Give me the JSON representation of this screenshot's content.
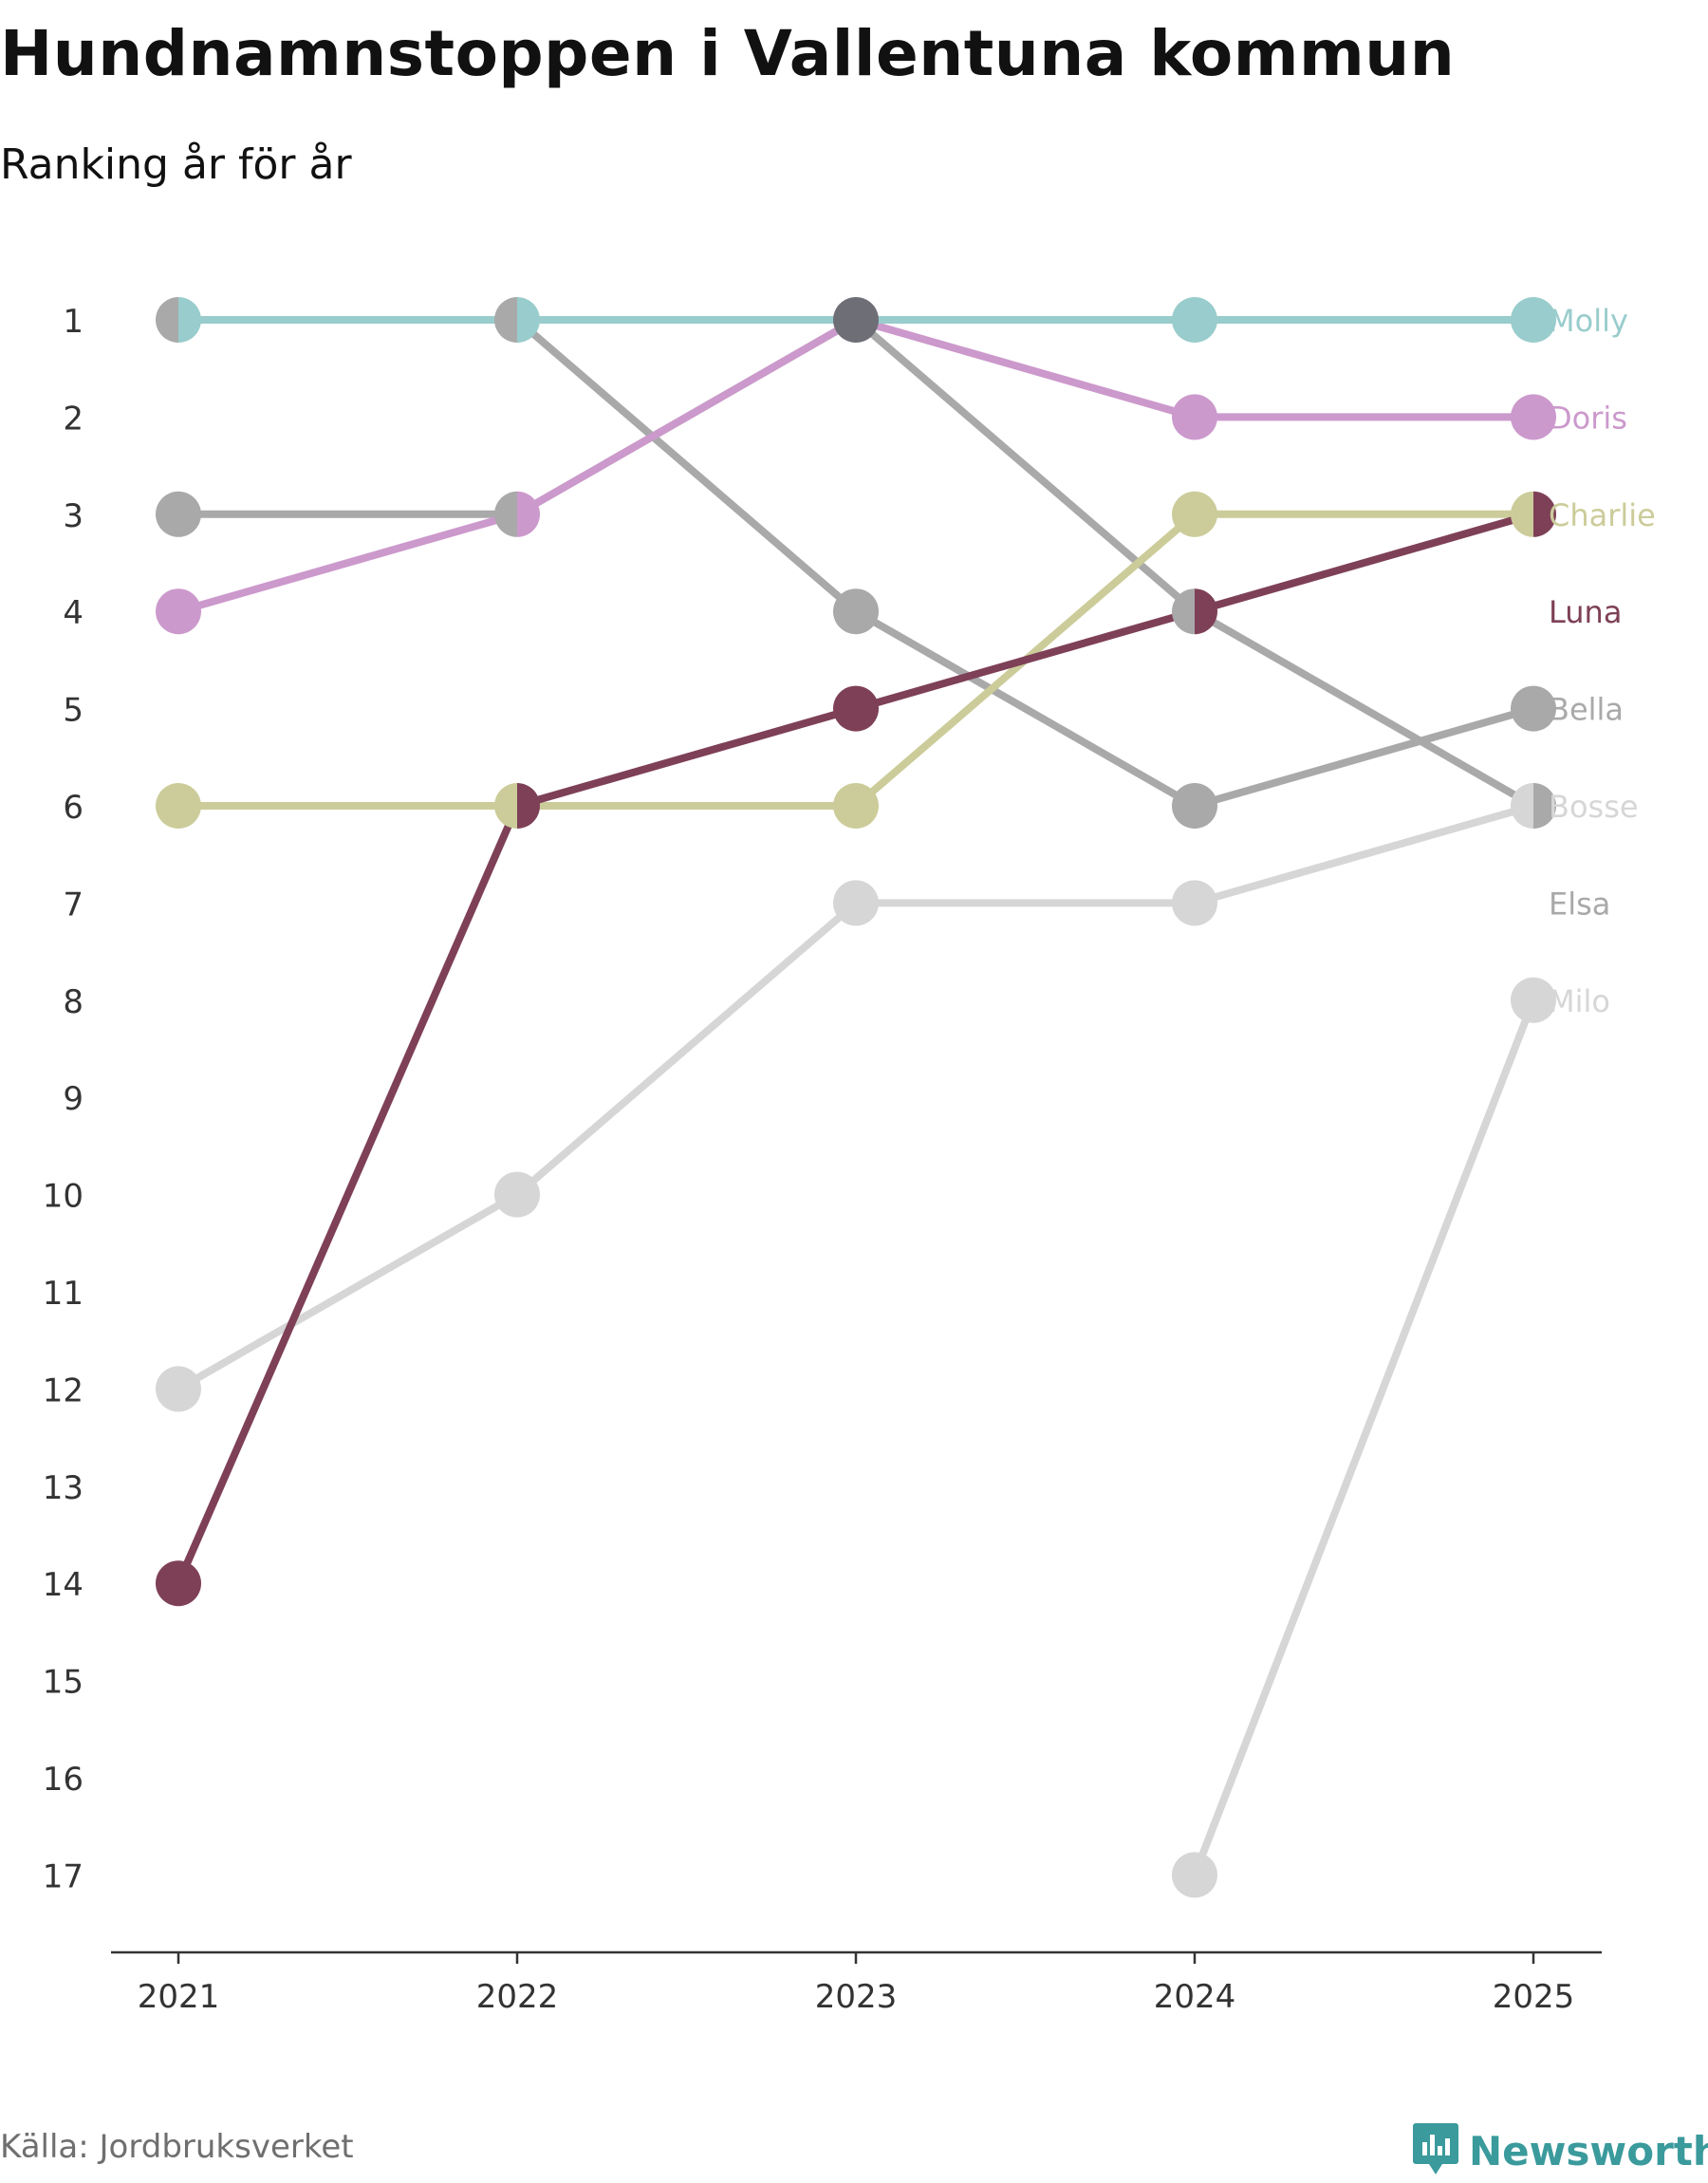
{
  "header": {
    "title": "Hundnamnstoppen i Vallentuna kommun",
    "subtitle": "Ranking år för år"
  },
  "footer": {
    "source": "Källa: Jordbruksverket",
    "brand": "Newsworthy",
    "brand_icon": "newsworthy-logo-icon",
    "brand_color": "#3a9a9c"
  },
  "chart_data": {
    "type": "line",
    "chart_style": "bump chart",
    "x": [
      "2021",
      "2022",
      "2023",
      "2024",
      "2025"
    ],
    "y_ticks": [
      "1",
      "2",
      "3",
      "4",
      "5",
      "6",
      "7",
      "8",
      "9",
      "10",
      "11",
      "12",
      "13",
      "14",
      "15",
      "16",
      "17"
    ],
    "y_range": [
      1,
      17
    ],
    "y_reversed": true,
    "grid": false,
    "legend": "direct labels at right end",
    "series": [
      {
        "name": "Milo",
        "color": "#d6d6d6",
        "values": [
          null,
          null,
          null,
          17,
          8
        ]
      },
      {
        "name": "Bosse",
        "color": "#d6d6d6",
        "values": [
          12,
          10,
          7,
          7,
          6
        ]
      },
      {
        "name": "Elsa",
        "color": "#a9a9a9",
        "values": [
          3,
          3,
          1,
          4,
          6
        ]
      },
      {
        "name": "Bella",
        "color": "#a9a9a9",
        "values": [
          1,
          1,
          4,
          6,
          5
        ]
      },
      {
        "name": "Charlie",
        "color": "#cccc9a",
        "values": [
          6,
          6,
          6,
          3,
          3
        ]
      },
      {
        "name": "Luna",
        "color": "#7e4057",
        "values": [
          14,
          6,
          5,
          4,
          3
        ]
      },
      {
        "name": "Doris",
        "color": "#cc99cc",
        "values": [
          4,
          3,
          1,
          2,
          2
        ]
      },
      {
        "name": "Molly",
        "color": "#99cccc",
        "values": [
          1,
          1,
          1,
          1,
          1
        ]
      }
    ]
  }
}
